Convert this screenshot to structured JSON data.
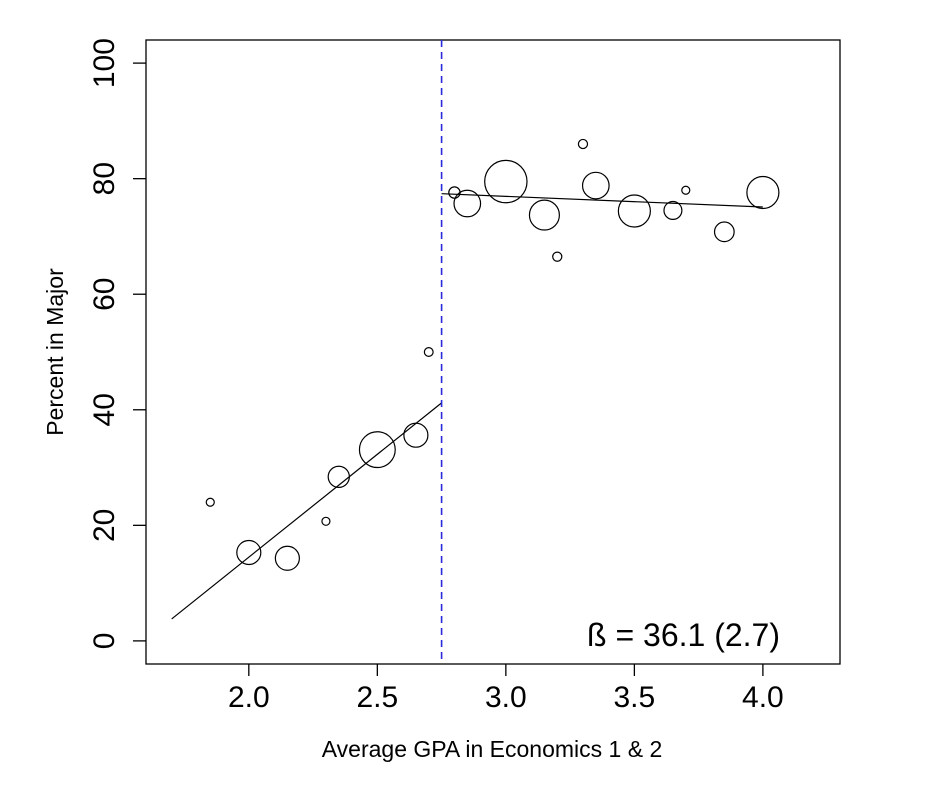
{
  "chart_data": {
    "type": "scatter",
    "xlabel": "Average GPA in Economics 1 & 2",
    "ylabel": "Percent in Major",
    "xlim": [
      1.6,
      4.3
    ],
    "ylim": [
      -4,
      104
    ],
    "xticks": [
      "2.0",
      "2.5",
      "3.0",
      "3.5",
      "4.0"
    ],
    "yticks": [
      "0",
      "20",
      "40",
      "60",
      "80",
      "100"
    ],
    "grid": false,
    "legend": "none",
    "cutoff": {
      "x": 2.75,
      "color": "#2b2bdd"
    },
    "annotation": "ß = 36.1 (2.7)",
    "points": [
      {
        "x": 1.85,
        "y": 24.0,
        "size": 1
      },
      {
        "x": 2.0,
        "y": 15.3,
        "size": 9
      },
      {
        "x": 2.15,
        "y": 14.3,
        "size": 9
      },
      {
        "x": 2.3,
        "y": 20.7,
        "size": 1
      },
      {
        "x": 2.35,
        "y": 28.4,
        "size": 7
      },
      {
        "x": 2.5,
        "y": 33.1,
        "size": 20
      },
      {
        "x": 2.65,
        "y": 35.6,
        "size": 9
      },
      {
        "x": 2.7,
        "y": 50.0,
        "size": 1.2
      },
      {
        "x": 2.8,
        "y": 77.6,
        "size": 2
      },
      {
        "x": 2.85,
        "y": 75.7,
        "size": 11
      },
      {
        "x": 3.0,
        "y": 79.5,
        "size": 28
      },
      {
        "x": 3.15,
        "y": 73.7,
        "size": 14
      },
      {
        "x": 3.2,
        "y": 66.5,
        "size": 1.3
      },
      {
        "x": 3.3,
        "y": 86.0,
        "size": 1.3
      },
      {
        "x": 3.35,
        "y": 78.8,
        "size": 11
      },
      {
        "x": 3.5,
        "y": 74.4,
        "size": 16
      },
      {
        "x": 3.65,
        "y": 74.5,
        "size": 5
      },
      {
        "x": 3.7,
        "y": 78.0,
        "size": 1
      },
      {
        "x": 3.85,
        "y": 70.8,
        "size": 6
      },
      {
        "x": 4.0,
        "y": 77.6,
        "size": 16
      }
    ],
    "fit_lines": [
      {
        "x": [
          1.7,
          2.75
        ],
        "y": [
          3.8,
          41.2
        ]
      },
      {
        "x": [
          2.75,
          4.0
        ],
        "y": [
          77.4,
          75.1
        ]
      }
    ]
  }
}
